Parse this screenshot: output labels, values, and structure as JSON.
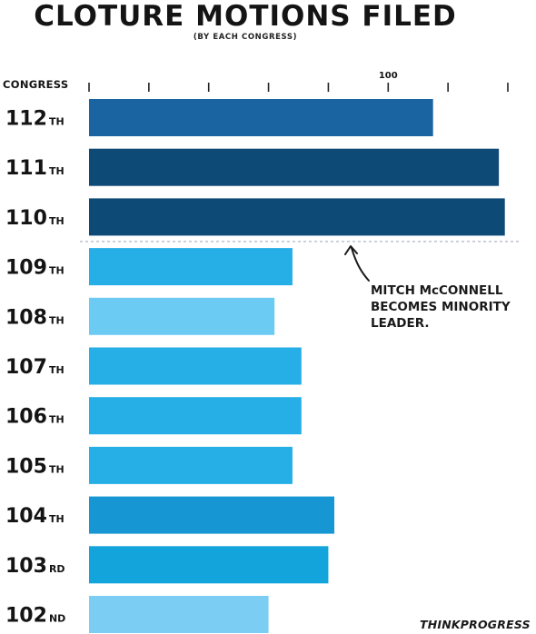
{
  "chart_data": {
    "type": "bar",
    "orientation": "horizontal",
    "title": "CLOTURE MOTIONS FILED",
    "subtitle": "(BY EACH CONGRESS)",
    "category_axis_label": "CONGRESS",
    "tick_labels": [
      {
        "value": 100,
        "label": "100"
      }
    ],
    "xlim": [
      0,
      140
    ],
    "tick_values": [
      0,
      20,
      40,
      60,
      80,
      100,
      120,
      140
    ],
    "grid": false,
    "categories": [
      {
        "number": "112",
        "suffix": "TH"
      },
      {
        "number": "111",
        "suffix": "TH"
      },
      {
        "number": "110",
        "suffix": "TH"
      },
      {
        "number": "109",
        "suffix": "TH"
      },
      {
        "number": "108",
        "suffix": "TH"
      },
      {
        "number": "107",
        "suffix": "TH"
      },
      {
        "number": "106",
        "suffix": "TH"
      },
      {
        "number": "105",
        "suffix": "TH"
      },
      {
        "number": "104",
        "suffix": "TH"
      },
      {
        "number": "103",
        "suffix": "RD"
      },
      {
        "number": "102",
        "suffix": "ND"
      }
    ],
    "values": [
      115,
      137,
      139,
      68,
      62,
      71,
      71,
      68,
      82,
      80,
      60
    ],
    "colors": [
      "#1a65a1",
      "#0e4a76",
      "#0e4a76",
      "#26aee6",
      "#6ccbf3",
      "#26aee6",
      "#26aee6",
      "#26aee6",
      "#1696d2",
      "#14a4dc",
      "#7ccdf4"
    ],
    "annotation": {
      "text": "MITCH McCONNELL BECOMES MINORITY LEADER.",
      "after_category": "110"
    }
  },
  "branding": {
    "logo_text": "THINKPROGRESS"
  }
}
